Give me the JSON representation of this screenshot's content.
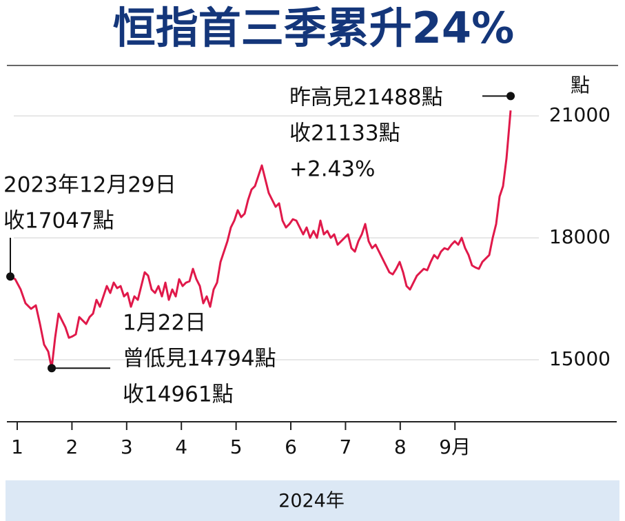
{
  "chart_data": {
    "type": "line",
    "title": "恒指首三季累升24%",
    "ylabel": "點",
    "xlabel": "2024年",
    "xlim": [
      0.811,
      11.957
    ],
    "xticks": [
      1,
      2,
      3,
      4,
      5,
      6,
      7,
      8,
      {
        "value": 9,
        "label": "9月"
      }
    ],
    "ylim": [
      13475,
      22240
    ],
    "yticks": [
      15000,
      18000,
      21000
    ],
    "grid": true,
    "series": [
      {
        "color": "#e0194a",
        "x": [
          0.874,
          0.962,
          1.063,
          1.151,
          1.252,
          1.34,
          1.416,
          1.491,
          1.567,
          1.63,
          1.693,
          1.756,
          1.819,
          1.882,
          1.945,
          2.008,
          2.071,
          2.134,
          2.196,
          2.259,
          2.322,
          2.385,
          2.448,
          2.511,
          2.574,
          2.637,
          2.7,
          2.763,
          2.826,
          2.889,
          2.952,
          3.015,
          3.078,
          3.141,
          3.204,
          3.267,
          3.33,
          3.393,
          3.456,
          3.519,
          3.582,
          3.645,
          3.708,
          3.771,
          3.834,
          3.897,
          3.96,
          4.023,
          4.086,
          4.149,
          4.212,
          4.275,
          4.338,
          4.401,
          4.463,
          4.526,
          4.589,
          4.652,
          4.715,
          4.778,
          4.841,
          4.904,
          4.967,
          5.03,
          5.093,
          5.156,
          5.219,
          5.282,
          5.345,
          5.408,
          5.471,
          5.534,
          5.597,
          5.66,
          5.723,
          5.786,
          5.849,
          5.912,
          5.975,
          6.038,
          6.101,
          6.164,
          6.227,
          6.29,
          6.353,
          6.416,
          6.479,
          6.542,
          6.605,
          6.668,
          6.73,
          6.793,
          6.856,
          6.919,
          6.982,
          7.045,
          7.108,
          7.171,
          7.234,
          7.297,
          7.36,
          7.423,
          7.486,
          7.549,
          7.612,
          7.675,
          7.738,
          7.801,
          7.864,
          7.927,
          7.99,
          8.053,
          8.116,
          8.179,
          8.242,
          8.305,
          8.368,
          8.431,
          8.494,
          8.557,
          8.62,
          8.683,
          8.746,
          8.809,
          8.872,
          8.935,
          8.997,
          9.06,
          9.123,
          9.186,
          9.249,
          9.312,
          9.375,
          9.438,
          9.501,
          9.564,
          9.627,
          9.69,
          9.753,
          9.816,
          9.879,
          9.942,
          10.018
        ],
        "values": [
          17047,
          16983,
          16729,
          16390,
          16254,
          16339,
          15881,
          15373,
          15203,
          14794,
          15542,
          16135,
          15966,
          15796,
          15542,
          15576,
          15627,
          16051,
          15966,
          15881,
          16051,
          16135,
          16474,
          16305,
          16559,
          16813,
          16644,
          16898,
          16762,
          16813,
          16559,
          16644,
          16305,
          16559,
          16474,
          16813,
          17152,
          17068,
          16729,
          16644,
          16813,
          16559,
          16898,
          16474,
          16729,
          16559,
          16983,
          16813,
          16898,
          16932,
          17237,
          16983,
          16813,
          16390,
          16559,
          16305,
          16729,
          16898,
          17407,
          17661,
          17915,
          18254,
          18424,
          18678,
          18508,
          18593,
          18932,
          19186,
          19271,
          19525,
          19780,
          19441,
          19102,
          18932,
          18763,
          18847,
          18424,
          18254,
          18339,
          18457,
          18424,
          18254,
          18085,
          18254,
          18000,
          18169,
          18000,
          18424,
          18085,
          18169,
          18000,
          18085,
          17830,
          17915,
          18000,
          18085,
          17746,
          17661,
          17915,
          18085,
          18339,
          17915,
          17746,
          17830,
          17661,
          17491,
          17322,
          17152,
          17101,
          17237,
          17407,
          17152,
          16813,
          16729,
          16898,
          17068,
          17152,
          17237,
          17203,
          17407,
          17576,
          17491,
          17661,
          17746,
          17712,
          17830,
          17915,
          17830,
          18000,
          17746,
          17576,
          17322,
          17271,
          17237,
          17407,
          17491,
          17576,
          18000,
          18339,
          19017,
          19271,
          19949,
          21133
        ]
      }
    ],
    "annotations": [
      {
        "lines": [
          "2023年12月29日",
          "收17047點"
        ],
        "x": 0.874,
        "value": 17047
      },
      {
        "lines": [
          "1月22日",
          "曾低見14794點",
          "收14961點"
        ],
        "x": 1.63,
        "value": 14794
      },
      {
        "lines": [
          "昨高見21488點",
          "收21133點",
          "+2.43%"
        ],
        "x": 10.018,
        "value": 21488
      }
    ]
  }
}
